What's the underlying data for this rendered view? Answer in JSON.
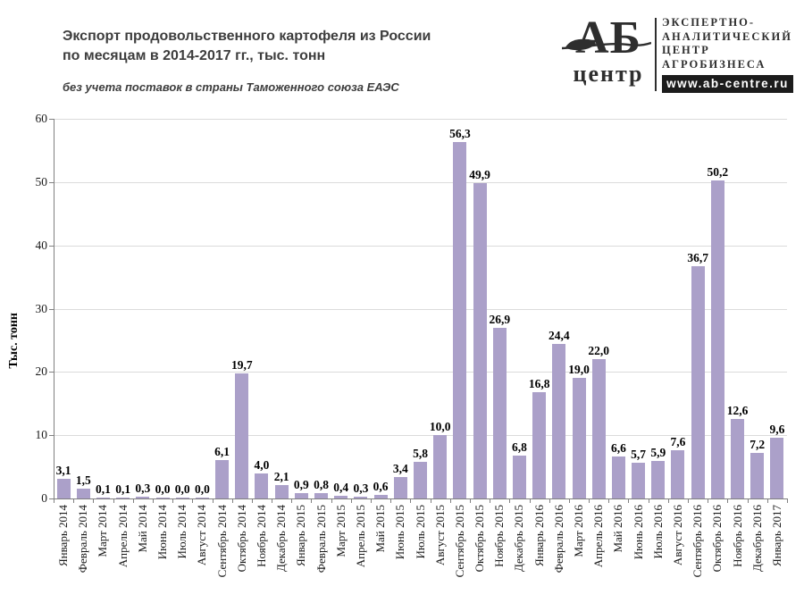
{
  "title": {
    "line1": "Экспорт продовольственного картофеля из России",
    "line2": "по месяцам в 2014-2017 гг., тыс. тонн"
  },
  "subtitle": "без учета поставок в страны Таможенного союза ЕАЭС",
  "logo": {
    "abbr": "АБ",
    "sub": "центр",
    "org_lines": [
      "ЭКСПЕРТНО-",
      "АНАЛИТИЧЕСКИЙ",
      "ЦЕНТР",
      "АГРОБИЗНЕСА"
    ],
    "url": "www.ab-centre.ru",
    "leaf_icon": "leaf-icon"
  },
  "chart_data": {
    "type": "bar",
    "title": "Экспорт продовольственного картофеля из России по месяцам в 2014-2017 гг., тыс. тонн",
    "subtitle": "без учета поставок в страны Таможенного союза ЕАЭС",
    "xlabel": "",
    "ylabel": "Тыс. тонн",
    "ylim": [
      0,
      60
    ],
    "yticks": [
      0,
      10,
      20,
      30,
      40,
      50,
      60
    ],
    "grid": "horizontal",
    "legend": "none",
    "decimal_separator": ",",
    "bar_color": "#aba0c9",
    "grid_color": "#dbdbdb",
    "axis_color": "#808080",
    "categories": [
      "Январь 2014",
      "Февраль 2014",
      "Март 2014",
      "Апрель 2014",
      "Май 2014",
      "Июнь 2014",
      "Июль 2014",
      "Август 2014",
      "Сентябрь 2014",
      "Октябрь 2014",
      "Ноябрь 2014",
      "Декабрь 2014",
      "Январь 2015",
      "Февраль 2015",
      "Март 2015",
      "Апрель 2015",
      "Май 2015",
      "Июнь 2015",
      "Июль 2015",
      "Август 2015",
      "Сентябрь 2015",
      "Октябрь 2015",
      "Ноябрь 2015",
      "Декабрь 2015",
      "Январь 2016",
      "Февраль 2016",
      "Март 2016",
      "Апрель 2016",
      "Май 2016",
      "Июнь 2016",
      "Июль 2016",
      "Август 2016",
      "Сентябрь 2016",
      "Октябрь 2016",
      "Ноябрь 2016",
      "Декабрь 2016",
      "Январь 2017"
    ],
    "values": [
      3.1,
      1.5,
      0.1,
      0.1,
      0.3,
      0.0,
      0.0,
      0.0,
      6.1,
      19.7,
      4.0,
      2.1,
      0.9,
      0.8,
      0.4,
      0.3,
      0.6,
      3.4,
      5.8,
      10.0,
      56.3,
      49.9,
      26.9,
      6.8,
      16.8,
      24.4,
      19.0,
      22.0,
      6.6,
      5.7,
      5.9,
      7.6,
      36.7,
      50.2,
      12.6,
      7.2,
      9.6
    ]
  }
}
